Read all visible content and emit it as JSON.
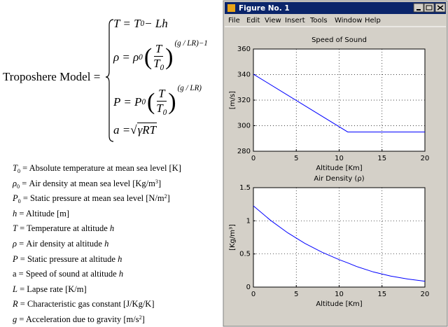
{
  "model_label": "Troposhere Model =",
  "equations": [
    [
      {
        "t": "T = T"
      },
      {
        "sub": "0"
      },
      {
        "t": " − Lh"
      }
    ],
    [
      {
        "t": "ρ = ρ"
      },
      {
        "sub": "0"
      },
      {
        "frac": [
          [
            {
              "t": "T"
            }
          ],
          [
            {
              "t": "T"
            },
            {
              "sub": "0"
            }
          ]
        ]
      },
      {
        "sup": "(g / LR)−1"
      }
    ],
    [
      {
        "t": "P = P"
      },
      {
        "sub": "0"
      },
      {
        "frac": [
          [
            {
              "t": "T"
            }
          ],
          [
            {
              "t": "T"
            },
            {
              "sub": "0"
            }
          ]
        ]
      },
      {
        "sup": "(g / LR)"
      }
    ],
    [
      {
        "t": "a = "
      },
      {
        "sqrt": "γRT"
      }
    ]
  ],
  "definitions": [
    [
      {
        "i": "T"
      },
      {
        "sub": "0"
      },
      {
        "t": " = Absolute temperature at mean sea level [K]"
      }
    ],
    [
      {
        "i": "ρ"
      },
      {
        "sub": "0"
      },
      {
        "t": " = Air density at mean sea level [Kg/m"
      },
      {
        "sup": "3"
      },
      {
        "t": "]"
      }
    ],
    [
      {
        "i": "P"
      },
      {
        "sub": "0"
      },
      {
        "t": " = Static pressure  at mean sea level [N/m"
      },
      {
        "sup": "2"
      },
      {
        "t": "]"
      }
    ],
    [
      {
        "i": "h"
      },
      {
        "t": " = Altitude [m]"
      }
    ],
    [
      {
        "i": "T"
      },
      {
        "t": " = Temperature at altitude "
      },
      {
        "i": "h"
      }
    ],
    [
      {
        "i": "ρ"
      },
      {
        "t": " = Air density at altitude "
      },
      {
        "i": "h"
      }
    ],
    [
      {
        "i": "P"
      },
      {
        "t": " = Static pressure at altitude "
      },
      {
        "i": "h"
      }
    ],
    [
      {
        "t": "a = Speed of sound at altitude "
      },
      {
        "i": "h"
      }
    ],
    [
      {
        "i": "L"
      },
      {
        "t": " = Lapse rate [K/m]"
      }
    ],
    [
      {
        "i": "R"
      },
      {
        "t": " = Characteristic gas constant [J/Kg/K]"
      }
    ],
    [
      {
        "i": "g"
      },
      {
        "t": " = Acceleration due to gravity [m/s"
      },
      {
        "sup": "2"
      },
      {
        "t": "]"
      }
    ]
  ],
  "window": {
    "title": "Figure No. 1",
    "menu": [
      "File",
      "Edit",
      "View",
      "Insert",
      "Tools",
      "Window",
      "Help"
    ]
  },
  "chart_data": [
    {
      "type": "line",
      "title": "Speed of Sound",
      "x_label": "Altitude [Km]",
      "y_label": "[m/s]",
      "x": [
        0,
        11,
        20
      ],
      "values": [
        340.3,
        295.1,
        295.1
      ],
      "color": "#0000ff",
      "xlim": [
        0,
        20
      ],
      "xticks": [
        0,
        5,
        10,
        15,
        20
      ],
      "ylim": [
        280,
        360
      ],
      "yticks": [
        280,
        300,
        320,
        340,
        360
      ],
      "grid": true
    },
    {
      "type": "line",
      "title": "Air Density (ρ)",
      "x_label": "Altitude [Km]",
      "y_label": "[Kg/m³]",
      "x": [
        0,
        2,
        4,
        6,
        8,
        10,
        11,
        12,
        14,
        16,
        18,
        20
      ],
      "values": [
        1.225,
        1.007,
        0.819,
        0.66,
        0.526,
        0.414,
        0.365,
        0.312,
        0.228,
        0.166,
        0.122,
        0.089
      ],
      "color": "#0000ff",
      "xlim": [
        0,
        20
      ],
      "xticks": [
        0,
        5,
        10,
        15,
        20
      ],
      "ylim": [
        0,
        1.5
      ],
      "yticks": [
        0,
        0.5,
        1,
        1.5
      ],
      "grid": true
    }
  ]
}
